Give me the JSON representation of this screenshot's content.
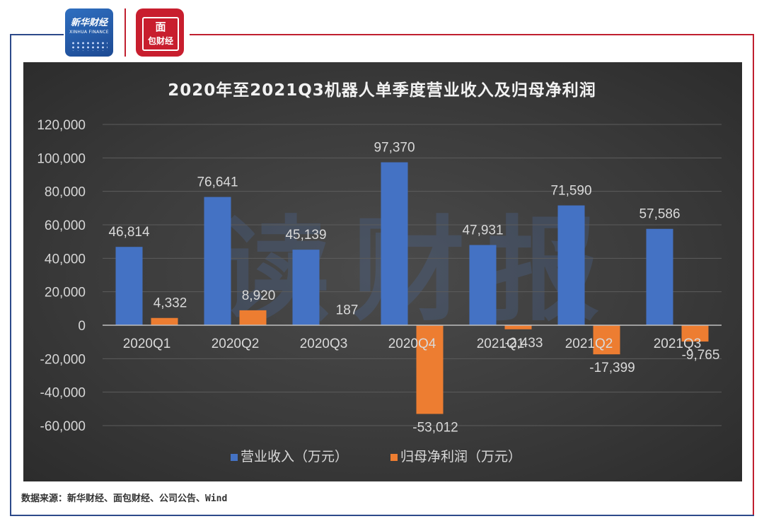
{
  "branding": {
    "xinhua_logo_text": "新华财经",
    "xinhua_logo_en": "XINHUA FINANCE",
    "mianbao_logo_text": "面包财经"
  },
  "colors": {
    "revenue": "#4472c4",
    "net_profit": "#ed7d31",
    "frame_blue": "#2d4a8a",
    "frame_red": "#c01f2f"
  },
  "source": "数据来源：新华财经、面包财经、公司公告、Wind",
  "chart_data": {
    "type": "bar",
    "title": "2020年至2021Q3机器人单季度营业收入及归母净利润",
    "categories": [
      "2020Q1",
      "2020Q2",
      "2020Q3",
      "2020Q4",
      "2021Q1",
      "2021Q2",
      "2021Q3"
    ],
    "series": [
      {
        "name": "营业收入（万元）",
        "color": "#4472c4",
        "values": [
          46814,
          76641,
          45139,
          97370,
          47931,
          71590,
          57586
        ]
      },
      {
        "name": "归母净利润（万元）",
        "color": "#ed7d31",
        "values": [
          4332,
          8920,
          187,
          -53012,
          -2433,
          -17399,
          -9765
        ]
      }
    ],
    "data_labels": [
      [
        "46,814",
        "76,641",
        "45,139",
        "97,370",
        "47,931",
        "71,590",
        "57,586"
      ],
      [
        "4,332",
        "8,920",
        "187",
        "-53,012",
        "-2,433",
        "-17,399",
        "-9,765"
      ]
    ],
    "ylim": [
      -60000,
      120000
    ],
    "yticks": [
      120000,
      100000,
      80000,
      60000,
      40000,
      20000,
      0,
      -20000,
      -40000,
      -60000
    ],
    "ytick_labels": [
      "120,000",
      "100,000",
      "80,000",
      "60,000",
      "40,000",
      "20,000",
      "0",
      "-20,000",
      "-40,000",
      "-60,000"
    ],
    "grid": true,
    "legend": "bottom",
    "watermark": "读财报"
  }
}
